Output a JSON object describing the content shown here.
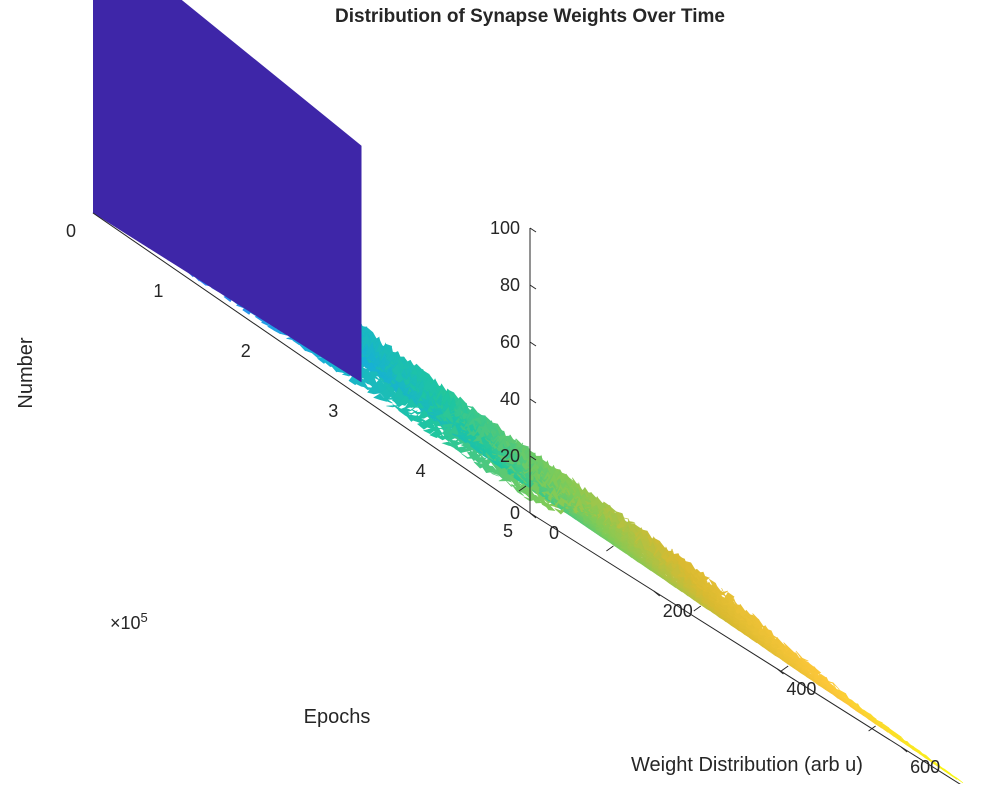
{
  "chart_data": {
    "type": "surface3d",
    "title": "Distribution of Synapse Weights Over Time",
    "zlabel": "Number",
    "xlabel": "Weight Distribution (arb u)",
    "ylabel": "Epochs",
    "y_exponent_base": "×10",
    "y_exponent_power": "5",
    "z_ticks": [
      "0",
      "20",
      "40",
      "60",
      "80",
      "100"
    ],
    "x_ticks": [
      "0",
      "200",
      "400",
      "600"
    ],
    "y_ticks": [
      "0",
      "1",
      "2",
      "3",
      "4",
      "5"
    ],
    "zlim": [
      0,
      100
    ],
    "xlim": [
      0,
      700
    ],
    "ylim": [
      0,
      500000
    ],
    "initial_spike": {
      "weight_range": [
        0,
        10
      ],
      "epoch": 0,
      "value": 100
    },
    "ridge_profile": {
      "weights": [
        0,
        50,
        100,
        150,
        200,
        250,
        300,
        350,
        400,
        450,
        500,
        550,
        600,
        650,
        700
      ],
      "late_epoch_counts": [
        5,
        8,
        11,
        14,
        15,
        15,
        14,
        12,
        10,
        8,
        6,
        4,
        3,
        2,
        1
      ],
      "early_epoch_counts": [
        0,
        33,
        30,
        27,
        23,
        19,
        15,
        12,
        9,
        7,
        5,
        3,
        2,
        1,
        0
      ]
    },
    "colormap": [
      "#3e26a8",
      "#4454f0",
      "#2e87f7",
      "#17b0d6",
      "#1fc6a0",
      "#80cb58",
      "#d9ba31",
      "#fcc73a",
      "#f9fb14"
    ]
  }
}
